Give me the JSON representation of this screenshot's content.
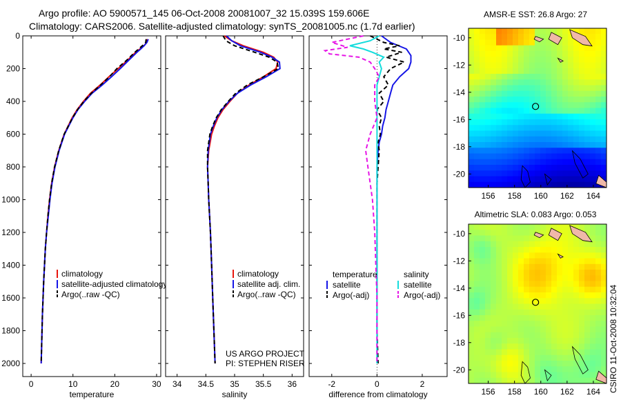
{
  "header": {
    "line1": "Argo profile: AO 5900571_145 06-Oct-2008 20081007_32 15.039S 159.606E",
    "line2": "Climatology: CARS2006. Satellite-adjusted climatology: synTS_20081005.nc (1.7d earlier)"
  },
  "colors": {
    "climatology": "#e8140c",
    "satellite": "#1414e6",
    "argo": "#000000",
    "salinity_sat": "#14dcdc",
    "salinity_argo": "#e614e6"
  },
  "chart_data": [
    {
      "type": "line",
      "xlabel": "temperature",
      "ylabel": "",
      "xlim": [
        -2,
        31
      ],
      "ylim": [
        2080,
        0
      ],
      "xticks": [
        0,
        10,
        20,
        30
      ],
      "yticks": [
        0,
        200,
        400,
        600,
        800,
        1000,
        1200,
        1400,
        1600,
        1800,
        2000
      ],
      "legend": [
        "climatology",
        "satellite-adjusted climatology",
        "Argo(..raw -QC)"
      ],
      "legend_placement": "lower-right",
      "series": [
        {
          "name": "climatology",
          "color": "#e8140c",
          "dash": "",
          "depth": [
            20,
            40,
            60,
            80,
            100,
            150,
            200,
            250,
            300,
            350,
            400,
            450,
            500,
            600,
            700,
            800,
            900,
            1000,
            1100,
            1200,
            1300,
            1400,
            1500,
            1600,
            1700,
            1800,
            1900,
            2000
          ],
          "values": [
            27.8,
            27.6,
            27.0,
            26.0,
            25.0,
            23.0,
            20.8,
            18.6,
            16.5,
            14.2,
            12.5,
            11.0,
            9.8,
            7.9,
            6.6,
            5.6,
            4.9,
            4.4,
            4.0,
            3.7,
            3.4,
            3.2,
            3.0,
            2.85,
            2.7,
            2.6,
            2.5,
            2.4
          ]
        },
        {
          "name": "satellite-adjusted climatology",
          "color": "#1414e6",
          "dash": "",
          "depth": [
            20,
            40,
            60,
            80,
            100,
            150,
            200,
            250,
            300,
            350,
            400,
            450,
            500,
            600,
            700,
            800,
            900,
            1000,
            1100,
            1200,
            1300,
            1400,
            1500,
            1600,
            1700,
            1800,
            1900,
            2000
          ],
          "values": [
            28.0,
            27.7,
            27.0,
            26.2,
            25.3,
            23.3,
            21.3,
            19.2,
            17.0,
            14.6,
            12.8,
            11.2,
            10.0,
            8.0,
            6.7,
            5.7,
            5.0,
            4.5,
            4.1,
            3.7,
            3.4,
            3.2,
            3.0,
            2.85,
            2.7,
            2.6,
            2.5,
            2.4
          ]
        },
        {
          "name": "Argo(..raw -QC)",
          "color": "#000000",
          "dash": "6,4",
          "depth": [
            20,
            40,
            60,
            80,
            100,
            150,
            200,
            250,
            300,
            350,
            400,
            450,
            500,
            600,
            700,
            800,
            900,
            1000,
            1100,
            1200,
            1300,
            1400,
            1500,
            1600,
            1700,
            1800,
            1900,
            2000
          ],
          "values": [
            27.5,
            27.4,
            26.6,
            25.7,
            24.8,
            22.8,
            20.5,
            18.7,
            16.6,
            14.4,
            12.6,
            11.1,
            9.9,
            7.9,
            6.6,
            5.6,
            4.9,
            4.4,
            4.0,
            3.7,
            3.4,
            3.2,
            3.0,
            2.85,
            2.7,
            2.6,
            2.5,
            2.4
          ]
        }
      ]
    },
    {
      "type": "line",
      "xlabel": "salinity",
      "xlim": [
        33.8,
        36.2
      ],
      "ylim": [
        2080,
        0
      ],
      "xticks": [
        34,
        34.5,
        35,
        35.5,
        36
      ],
      "legend": [
        "climatology",
        "satellite adj. clim.",
        "Argo(..raw -QC)"
      ],
      "legend_placement": "lower-right",
      "annotation": [
        "US ARGO PROJECT",
        "PI: STEPHEN RISER"
      ],
      "series": [
        {
          "name": "climatology",
          "color": "#e8140c",
          "dash": "",
          "depth": [
            0,
            30,
            60,
            100,
            130,
            160,
            200,
            250,
            300,
            350,
            400,
            450,
            500,
            550,
            600,
            700,
            800,
            900,
            1000,
            1200,
            1400,
            1600,
            1800,
            2000
          ],
          "values": [
            34.82,
            34.95,
            35.15,
            35.5,
            35.68,
            35.75,
            35.72,
            35.5,
            35.25,
            35.05,
            34.92,
            34.8,
            34.71,
            34.65,
            34.6,
            34.55,
            34.53,
            34.54,
            34.55,
            34.58,
            34.6,
            34.62,
            34.64,
            34.66
          ]
        },
        {
          "name": "satellite adj. clim.",
          "color": "#1414e6",
          "dash": "",
          "depth": [
            0,
            30,
            60,
            100,
            130,
            160,
            200,
            250,
            300,
            350,
            400,
            450,
            500,
            550,
            600,
            700,
            800,
            900,
            1000,
            1200,
            1400,
            1600,
            1800,
            2000
          ],
          "values": [
            34.86,
            34.95,
            35.1,
            35.45,
            35.65,
            35.78,
            35.79,
            35.55,
            35.28,
            35.05,
            34.9,
            34.78,
            34.69,
            34.63,
            34.58,
            34.54,
            34.53,
            34.54,
            34.55,
            34.58,
            34.6,
            34.62,
            34.64,
            34.66
          ]
        },
        {
          "name": "Argo(..raw -QC)",
          "color": "#000000",
          "dash": "6,4",
          "depth": [
            0,
            30,
            60,
            100,
            130,
            160,
            200,
            250,
            300,
            350,
            400,
            450,
            500,
            550,
            600,
            700,
            800,
            900,
            1000,
            1200,
            1400,
            1600,
            1800,
            2000
          ],
          "values": [
            34.8,
            34.85,
            35.0,
            35.35,
            35.6,
            35.74,
            35.76,
            35.5,
            35.22,
            35.02,
            34.89,
            34.77,
            34.68,
            34.62,
            34.57,
            34.53,
            34.53,
            34.54,
            34.55,
            34.58,
            34.6,
            34.62,
            34.64,
            34.66
          ]
        }
      ]
    },
    {
      "type": "line",
      "xlabel": "difference from climatology",
      "xlim": [
        -3,
        3.1
      ],
      "ylim": [
        2080,
        0
      ],
      "xticks": [
        -2,
        0,
        2
      ],
      "legend": [
        "temperature",
        "satellite",
        "Argo(-adj)",
        "salinity",
        "satellite",
        "Argo(-adj)"
      ],
      "legend_placement": "lower-center",
      "series": [
        {
          "name": "temperature satellite",
          "color": "#1414e6",
          "dash": "",
          "depth": [
            0,
            40,
            80,
            120,
            160,
            200,
            250,
            300,
            350,
            400,
            450,
            500,
            550,
            600,
            650,
            700,
            800,
            900,
            1000,
            1200,
            1400,
            1600,
            1800,
            2000
          ],
          "values": [
            0.2,
            0.6,
            1.3,
            1.5,
            1.5,
            1.4,
            1.0,
            0.7,
            0.6,
            0.5,
            0.4,
            0.35,
            0.25,
            0.2,
            0.1,
            0.05,
            0.0,
            0.0,
            0.0,
            0.0,
            0.0,
            0.0,
            0.0,
            0.0
          ]
        },
        {
          "name": "temperature Argo(-adj)",
          "color": "#000000",
          "dash": "6,4",
          "depth": [
            0,
            40,
            60,
            80,
            100,
            130,
            160,
            200,
            250,
            300,
            350,
            400,
            450,
            500,
            550,
            600,
            650,
            700,
            800,
            900,
            1000,
            1200,
            1400,
            1600,
            1800,
            2000
          ],
          "values": [
            -0.3,
            0.3,
            1.0,
            0.3,
            1.1,
            0.4,
            1.2,
            0.6,
            0.3,
            0.5,
            0.1,
            0.3,
            0.0,
            0.2,
            0.1,
            0.15,
            0.05,
            0.1,
            0.05,
            0.0,
            0.0,
            0.0,
            0.0,
            0.0,
            0.0,
            0.05
          ]
        },
        {
          "name": "salinity satellite",
          "color": "#14dcdc",
          "dash": "",
          "depth": [
            0,
            30,
            60,
            80,
            100,
            130,
            160,
            200,
            250,
            300,
            350,
            400,
            500,
            600,
            800,
            1000,
            1200,
            1400,
            1600,
            1800,
            2000
          ],
          "values": [
            0.1,
            -0.3,
            -1.2,
            -0.6,
            -0.2,
            0.3,
            0.1,
            0.2,
            0.1,
            0.0,
            0.0,
            0.0,
            0.0,
            0.0,
            0.0,
            0.0,
            0.0,
            0.0,
            0.0,
            0.0,
            0.0
          ]
        },
        {
          "name": "salinity Argo(-adj)",
          "color": "#e614e6",
          "dash": "6,4",
          "depth": [
            0,
            40,
            70,
            90,
            110,
            130,
            160,
            200,
            250,
            300,
            400,
            500,
            600,
            700,
            800,
            1000,
            1200,
            1400,
            1600,
            1800,
            2000
          ],
          "values": [
            -0.6,
            -2.0,
            -1.3,
            -2.3,
            -2.1,
            -0.8,
            -0.3,
            -0.1,
            0.1,
            -0.1,
            -0.1,
            0.0,
            -0.3,
            -0.5,
            -0.4,
            -0.2,
            -0.1,
            -0.05,
            0.0,
            0.0,
            0.0
          ]
        }
      ]
    },
    {
      "type": "heatmap",
      "title": "AMSR-E SST: 26.8 Argo: 27",
      "xlim": [
        154.5,
        165
      ],
      "ylim": [
        -21,
        -9.3
      ],
      "xticks": [
        156,
        158,
        160,
        162,
        164
      ],
      "yticks": [
        -10,
        -12,
        -14,
        -16,
        -18,
        -20
      ],
      "marker": {
        "lon": 159.6,
        "lat": -15.04
      }
    },
    {
      "type": "heatmap",
      "title": "Altimetric SLA: 0.083 Argo: 0.053",
      "xlim": [
        154.5,
        165
      ],
      "ylim": [
        -21,
        -9.3
      ],
      "xticks": [
        156,
        158,
        160,
        162,
        164
      ],
      "yticks": [
        -10,
        -12,
        -14,
        -16,
        -18,
        -20
      ],
      "marker": {
        "lon": 159.6,
        "lat": -15.04
      }
    }
  ],
  "footer": {
    "stamp": "CSIRO 11-Oct-2008 10:32:04"
  }
}
